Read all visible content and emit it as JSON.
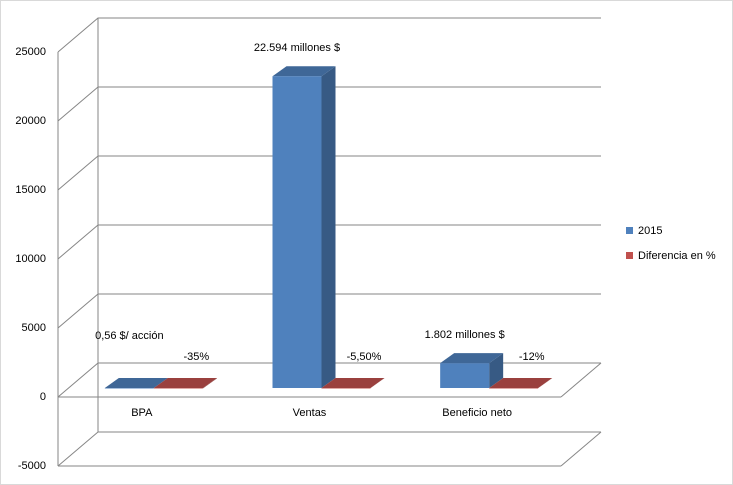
{
  "chart_data": {
    "type": "bar3d",
    "categories": [
      "BPA",
      "Ventas",
      "Beneficio neto"
    ],
    "series": [
      {
        "name": "2015",
        "color": "#4f81bd",
        "values": [
          0.56,
          22594,
          1802
        ],
        "value_labels": [
          "0,56 $/ acción",
          "22.594 millones $",
          "1.802 millones $"
        ]
      },
      {
        "name": "Diferencia en %",
        "color": "#c0504d",
        "values": [
          -35,
          -5.5,
          -12
        ],
        "value_labels": [
          "-35%",
          "-5,50%",
          "-12%"
        ]
      }
    ],
    "ylim": [
      -5000,
      25000
    ],
    "yticks": [
      -5000,
      0,
      5000,
      10000,
      15000,
      20000,
      25000
    ],
    "grid": true,
    "legend": "right"
  }
}
